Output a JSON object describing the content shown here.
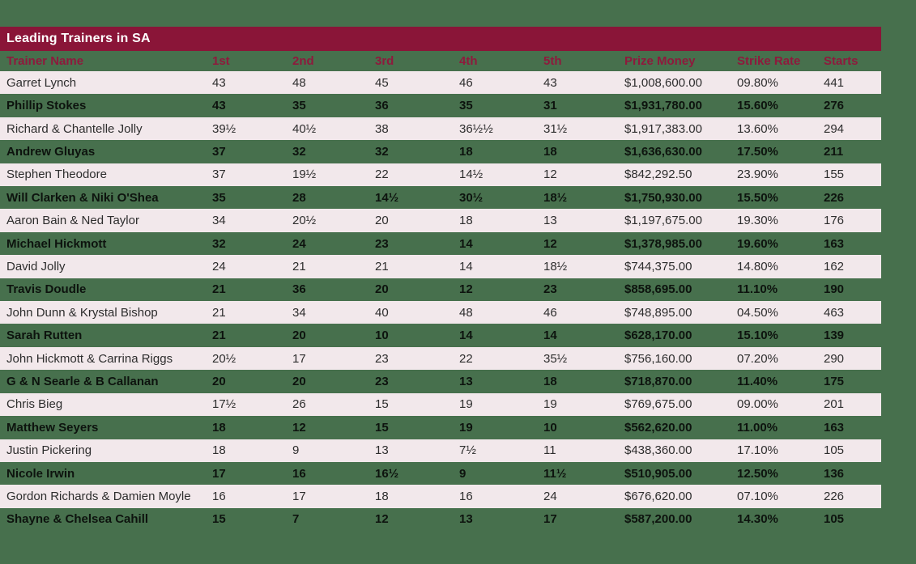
{
  "title": "Leading Trainers in SA",
  "colors": {
    "background_green": "#47704D",
    "title_bar_maroon": "#8A1538",
    "header_text_maroon": "#8E1A3D",
    "alt_row_pink": "#F2E8EB",
    "title_text": "#FFFFFF"
  },
  "table": {
    "columns": [
      "Trainer Name",
      "1st",
      "2nd",
      "3rd",
      "4th",
      "5th",
      "Prize Money",
      "Strike Rate",
      "Starts"
    ],
    "rows": [
      [
        "Garret Lynch",
        "43",
        "48",
        "45",
        "46",
        "43",
        "$1,008,600.00",
        "09.80%",
        "441"
      ],
      [
        "Phillip Stokes",
        "43",
        "35",
        "36",
        "35",
        "31",
        "$1,931,780.00",
        "15.60%",
        "276"
      ],
      [
        "Richard & Chantelle Jolly",
        "39½",
        "40½",
        "38",
        "36½½",
        "31½",
        "$1,917,383.00",
        "13.60%",
        "294"
      ],
      [
        "Andrew Gluyas",
        "37",
        "32",
        "32",
        "18",
        "18",
        "$1,636,630.00",
        "17.50%",
        "211"
      ],
      [
        "Stephen Theodore",
        "37",
        "19½",
        "22",
        "14½",
        "12",
        "$842,292.50",
        "23.90%",
        "155"
      ],
      [
        "Will Clarken & Niki O'Shea",
        "35",
        "28",
        "14½",
        "30½",
        "18½",
        "$1,750,930.00",
        "15.50%",
        "226"
      ],
      [
        "Aaron Bain & Ned Taylor",
        "34",
        "20½",
        "20",
        "18",
        "13",
        "$1,197,675.00",
        "19.30%",
        "176"
      ],
      [
        "Michael Hickmott",
        "32",
        "24",
        "23",
        "14",
        "12",
        "$1,378,985.00",
        "19.60%",
        "163"
      ],
      [
        "David Jolly",
        "24",
        "21",
        "21",
        "14",
        "18½",
        "$744,375.00",
        "14.80%",
        "162"
      ],
      [
        "Travis Doudle",
        "21",
        "36",
        "20",
        "12",
        "23",
        "$858,695.00",
        "11.10%",
        "190"
      ],
      [
        "John Dunn & Krystal Bishop",
        "21",
        "34",
        "40",
        "48",
        "46",
        "$748,895.00",
        "04.50%",
        "463"
      ],
      [
        "Sarah Rutten",
        "21",
        "20",
        "10",
        "14",
        "14",
        "$628,170.00",
        "15.10%",
        "139"
      ],
      [
        "John Hickmott & Carrina Riggs",
        "20½",
        "17",
        "23",
        "22",
        "35½",
        "$756,160.00",
        "07.20%",
        "290"
      ],
      [
        "G & N Searle & B Callanan",
        "20",
        "20",
        "23",
        "13",
        "18",
        "$718,870.00",
        "11.40%",
        "175"
      ],
      [
        "Chris Bieg",
        "17½",
        "26",
        "15",
        "19",
        "19",
        "$769,675.00",
        "09.00%",
        "201"
      ],
      [
        "Matthew Seyers",
        "18",
        "12",
        "15",
        "19",
        "10",
        "$562,620.00",
        "11.00%",
        "163"
      ],
      [
        "Justin Pickering",
        "18",
        "9",
        "13",
        "7½",
        "11",
        "$438,360.00",
        "17.10%",
        "105"
      ],
      [
        "Nicole Irwin",
        "17",
        "16",
        "16½",
        "9",
        "11½",
        "$510,905.00",
        "12.50%",
        "136"
      ],
      [
        "Gordon Richards & Damien Moyle",
        "16",
        "17",
        "18",
        "16",
        "24",
        "$676,620.00",
        "07.10%",
        "226"
      ],
      [
        "Shayne & Chelsea Cahill",
        "15",
        "7",
        "12",
        "13",
        "17",
        "$587,200.00",
        "14.30%",
        "105"
      ]
    ]
  }
}
